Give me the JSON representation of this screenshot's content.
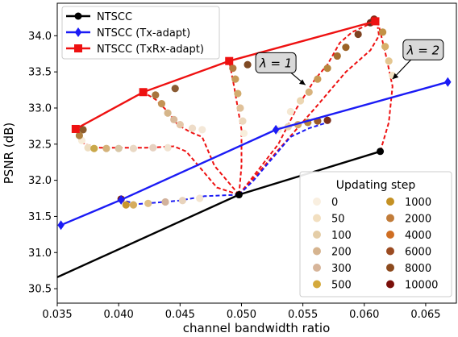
{
  "chart_data": {
    "type": "line",
    "title": "",
    "xlabel": "channel bandwidth ratio",
    "ylabel": "PSNR (dB)",
    "xlim": [
      0.035,
      0.0675
    ],
    "ylim": [
      30.3,
      34.45
    ],
    "xticks": [
      {
        "value": 0.035,
        "label": "0.035"
      },
      {
        "value": 0.04,
        "label": "0.040"
      },
      {
        "value": 0.045,
        "label": "0.045"
      },
      {
        "value": 0.05,
        "label": "0.050"
      },
      {
        "value": 0.055,
        "label": "0.055"
      },
      {
        "value": 0.06,
        "label": "0.060"
      },
      {
        "value": 0.065,
        "label": "0.065"
      }
    ],
    "yticks": [
      {
        "value": 30.5,
        "label": "30.5"
      },
      {
        "value": 31.0,
        "label": "31.0"
      },
      {
        "value": 31.5,
        "label": "31.5"
      },
      {
        "value": 32.0,
        "label": "32.0"
      },
      {
        "value": 32.5,
        "label": "32.5"
      },
      {
        "value": 33.0,
        "label": "33.0"
      },
      {
        "value": 33.5,
        "label": "33.5"
      },
      {
        "value": 34.0,
        "label": "34.0"
      }
    ],
    "grid": false,
    "series": [
      {
        "name": "NTSCC",
        "color": "#000000",
        "marker": "circle",
        "x": [
          0.0345,
          0.0498,
          0.0613
        ],
        "y": [
          30.62,
          31.8,
          32.4
        ]
      },
      {
        "name": "NTSCC (Tx-adapt)",
        "color": "#1b1bf5",
        "marker": "diamond",
        "x": [
          0.0353,
          0.0402,
          0.0528,
          0.0668
        ],
        "y": [
          31.38,
          31.73,
          32.7,
          33.36
        ]
      },
      {
        "name": "NTSCC (TxRx-adapt)",
        "color": "#ee1111",
        "marker": "square",
        "x": [
          0.0365,
          0.042,
          0.049,
          0.0609
        ],
        "y": [
          32.71,
          33.22,
          33.65,
          34.2
        ]
      }
    ],
    "adaptation_paths": [
      [
        [
          0.0498,
          31.8
        ],
        [
          0.048,
          31.9
        ],
        [
          0.0465,
          32.2
        ],
        [
          0.0455,
          32.4
        ],
        [
          0.0445,
          32.47
        ],
        [
          0.0422,
          32.45
        ],
        [
          0.0401,
          32.45
        ],
        [
          0.0385,
          32.45
        ],
        [
          0.0372,
          32.5
        ],
        [
          0.037,
          32.6
        ],
        [
          0.0365,
          32.71
        ]
      ],
      [
        [
          0.0498,
          31.8
        ],
        [
          0.0478,
          32.2
        ],
        [
          0.0468,
          32.6
        ],
        [
          0.0458,
          32.67
        ],
        [
          0.0448,
          32.77
        ],
        [
          0.044,
          32.95
        ],
        [
          0.043,
          33.12
        ],
        [
          0.042,
          33.22
        ]
      ],
      [
        [
          0.0498,
          31.8
        ],
        [
          0.05,
          32.2
        ],
        [
          0.05,
          32.7
        ],
        [
          0.0497,
          33.0
        ],
        [
          0.0494,
          33.3
        ],
        [
          0.049,
          33.65
        ]
      ],
      [
        [
          0.0498,
          31.8
        ],
        [
          0.053,
          32.5
        ],
        [
          0.0545,
          33.0
        ],
        [
          0.056,
          33.4
        ],
        [
          0.057,
          33.6
        ],
        [
          0.058,
          33.9
        ],
        [
          0.059,
          34.05
        ],
        [
          0.0609,
          34.2
        ]
      ],
      [
        [
          0.0498,
          31.8
        ],
        [
          0.056,
          33.0
        ],
        [
          0.0585,
          33.5
        ],
        [
          0.0605,
          33.8
        ],
        [
          0.0612,
          34.0
        ],
        [
          0.0611,
          34.12
        ]
      ],
      [
        [
          0.0613,
          32.4
        ],
        [
          0.062,
          32.8
        ],
        [
          0.0623,
          33.3
        ],
        [
          0.0618,
          33.7
        ],
        [
          0.0611,
          34.2
        ]
      ],
      [
        [
          0.0498,
          31.8
        ],
        [
          0.047,
          31.78
        ],
        [
          0.045,
          31.72
        ],
        [
          0.043,
          31.69
        ],
        [
          0.0415,
          31.67
        ],
        [
          0.0402,
          31.73
        ]
      ],
      [
        [
          0.0498,
          31.8
        ],
        [
          0.051,
          32.0
        ],
        [
          0.0525,
          32.3
        ],
        [
          0.054,
          32.6
        ],
        [
          0.0555,
          32.72
        ],
        [
          0.057,
          32.8
        ]
      ]
    ],
    "adaptation_points": [
      {
        "x": 0.037,
        "y": 32.55,
        "c": "#f7ecd9"
      },
      {
        "x": 0.0375,
        "y": 32.45,
        "c": "#eedec2"
      },
      {
        "x": 0.038,
        "y": 32.44,
        "c": "#c9a84a"
      },
      {
        "x": 0.039,
        "y": 32.44,
        "c": "#d4b27a"
      },
      {
        "x": 0.04,
        "y": 32.44,
        "c": "#d8c6a6"
      },
      {
        "x": 0.0412,
        "y": 32.44,
        "c": "#e9d8c4"
      },
      {
        "x": 0.0428,
        "y": 32.45,
        "c": "#e6d1c0"
      },
      {
        "x": 0.044,
        "y": 32.45,
        "c": "#f1e3d1"
      },
      {
        "x": 0.0371,
        "y": 32.7,
        "c": "#8c5a2a"
      },
      {
        "x": 0.0368,
        "y": 32.62,
        "c": "#b0803f"
      },
      {
        "x": 0.043,
        "y": 33.18,
        "c": "#a8743d"
      },
      {
        "x": 0.0435,
        "y": 33.06,
        "c": "#c49355"
      },
      {
        "x": 0.044,
        "y": 32.93,
        "c": "#d5b58a"
      },
      {
        "x": 0.0445,
        "y": 32.84,
        "c": "#d9b99a"
      },
      {
        "x": 0.045,
        "y": 32.77,
        "c": "#e4c7a9"
      },
      {
        "x": 0.046,
        "y": 32.72,
        "c": "#eedcc8"
      },
      {
        "x": 0.0468,
        "y": 32.7,
        "c": "#f4e8d8"
      },
      {
        "x": 0.0446,
        "y": 33.27,
        "c": "#8a5b33"
      },
      {
        "x": 0.0493,
        "y": 33.55,
        "c": "#b57a40"
      },
      {
        "x": 0.0495,
        "y": 33.4,
        "c": "#c89a58"
      },
      {
        "x": 0.0497,
        "y": 33.2,
        "c": "#d2ac6e"
      },
      {
        "x": 0.0499,
        "y": 33.0,
        "c": "#e0c19a"
      },
      {
        "x": 0.0501,
        "y": 32.82,
        "c": "#ecd8be"
      },
      {
        "x": 0.0502,
        "y": 32.65,
        "c": "#f8eedc"
      },
      {
        "x": 0.0505,
        "y": 33.6,
        "c": "#7f4a24"
      },
      {
        "x": 0.054,
        "y": 32.95,
        "c": "#f5e8d3"
      },
      {
        "x": 0.0548,
        "y": 33.1,
        "c": "#ecd6b2"
      },
      {
        "x": 0.0555,
        "y": 33.22,
        "c": "#d8b27c"
      },
      {
        "x": 0.0562,
        "y": 33.4,
        "c": "#c99a55"
      },
      {
        "x": 0.057,
        "y": 33.55,
        "c": "#b8873f"
      },
      {
        "x": 0.0578,
        "y": 33.72,
        "c": "#a66f30"
      },
      {
        "x": 0.0585,
        "y": 33.84,
        "c": "#9c6226"
      },
      {
        "x": 0.0595,
        "y": 34.02,
        "c": "#7d4221"
      },
      {
        "x": 0.0605,
        "y": 34.18,
        "c": "#6a2a1a"
      },
      {
        "x": 0.0615,
        "y": 34.05,
        "c": "#c29246"
      },
      {
        "x": 0.0617,
        "y": 33.85,
        "c": "#d7af6a"
      },
      {
        "x": 0.062,
        "y": 33.65,
        "c": "#e4c690"
      },
      {
        "x": 0.0623,
        "y": 33.45,
        "c": "#f2e2c2"
      },
      {
        "x": 0.0608,
        "y": 34.23,
        "c": "#8a2b18"
      },
      {
        "x": 0.0402,
        "y": 31.74,
        "c": "#7c1d15"
      },
      {
        "x": 0.0406,
        "y": 31.66,
        "c": "#c8952e"
      },
      {
        "x": 0.0412,
        "y": 31.66,
        "c": "#d6ac5c"
      },
      {
        "x": 0.0424,
        "y": 31.68,
        "c": "#e0bf88"
      },
      {
        "x": 0.0438,
        "y": 31.7,
        "c": "#d2b29c"
      },
      {
        "x": 0.0452,
        "y": 31.72,
        "c": "#e8d3bc"
      },
      {
        "x": 0.0466,
        "y": 31.75,
        "c": "#f3e4d0"
      },
      {
        "x": 0.053,
        "y": 32.7,
        "c": "#f7ead6"
      },
      {
        "x": 0.0538,
        "y": 32.74,
        "c": "#e9d2b0"
      },
      {
        "x": 0.0546,
        "y": 32.77,
        "c": "#d4a96a"
      },
      {
        "x": 0.0554,
        "y": 32.8,
        "c": "#b9843d"
      },
      {
        "x": 0.0562,
        "y": 32.82,
        "c": "#9a5a28"
      },
      {
        "x": 0.057,
        "y": 32.83,
        "c": "#7b2d1b"
      }
    ],
    "annotations": [
      {
        "label": "λ = 1",
        "box_x": 0.0528,
        "box_y": 33.62,
        "arrow_to_x": 0.0552,
        "arrow_to_y": 33.32
      },
      {
        "label": "λ = 2",
        "box_x": 0.0648,
        "box_y": 33.8,
        "arrow_to_x": 0.0623,
        "arrow_to_y": 33.4
      }
    ],
    "legend": {
      "placement": "top-left",
      "entries": [
        "NTSCC",
        "NTSCC (Tx-adapt)",
        "NTSCC (TxRx-adapt)"
      ]
    },
    "step_legend": {
      "title": "Updating step",
      "placement": "bottom-right",
      "items": [
        {
          "label": "0",
          "color": "#f9efe0"
        },
        {
          "label": "50",
          "color": "#f2dfc0"
        },
        {
          "label": "100",
          "color": "#e4cda7"
        },
        {
          "label": "200",
          "color": "#d6b48f"
        },
        {
          "label": "300",
          "color": "#d7b59a"
        },
        {
          "label": "500",
          "color": "#d4a93b"
        },
        {
          "label": "1000",
          "color": "#c49124"
        },
        {
          "label": "2000",
          "color": "#c17c3a"
        },
        {
          "label": "4000",
          "color": "#cf6e22"
        },
        {
          "label": "6000",
          "color": "#9b4b21"
        },
        {
          "label": "8000",
          "color": "#8c4a1e"
        },
        {
          "label": "10000",
          "color": "#7a0f0a"
        }
      ]
    }
  }
}
